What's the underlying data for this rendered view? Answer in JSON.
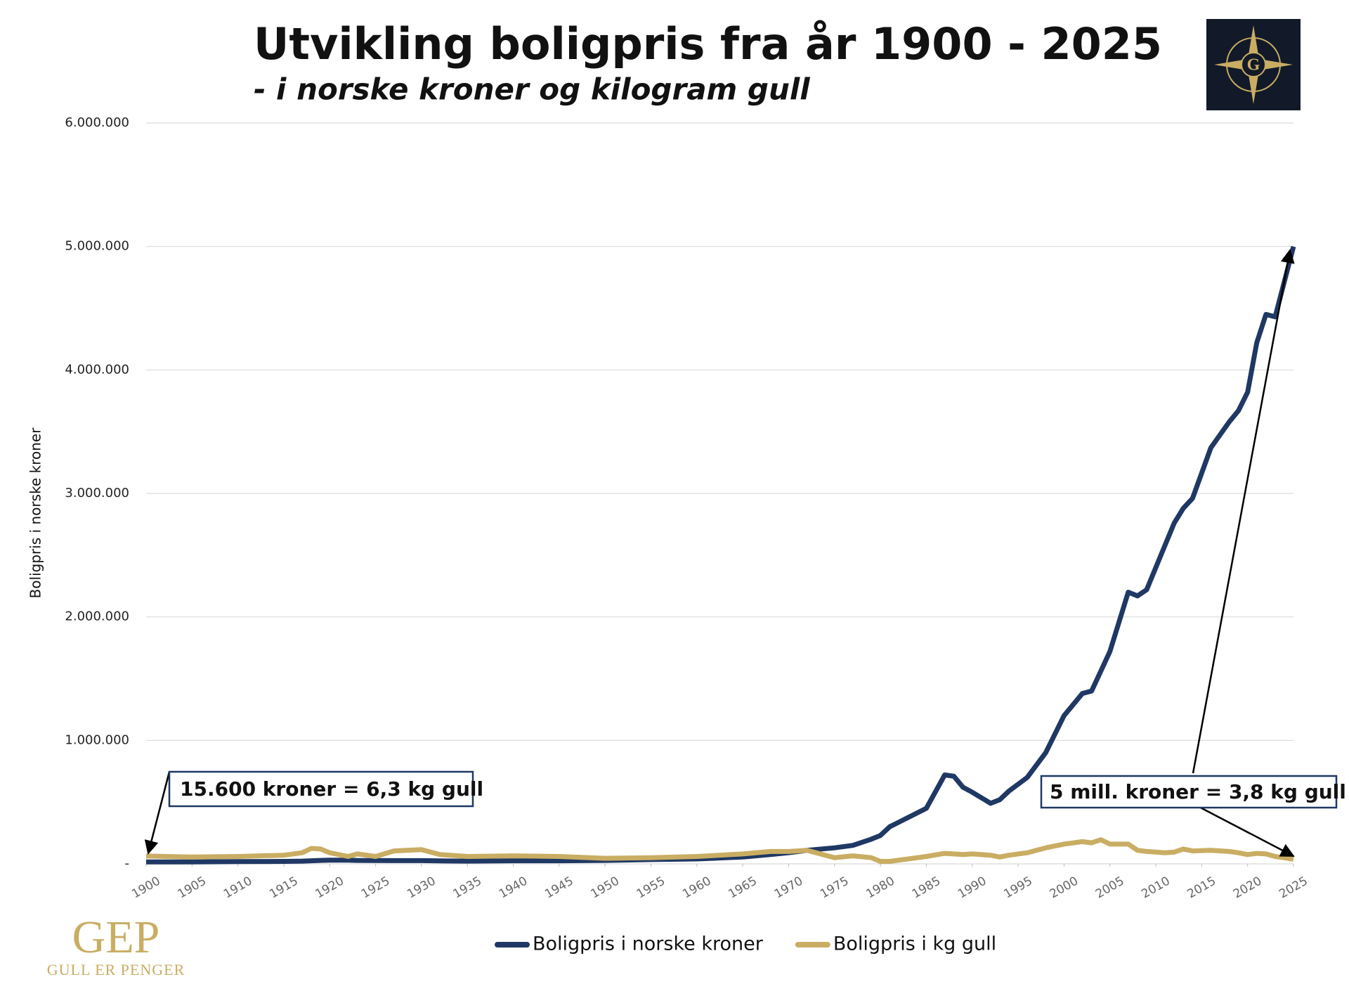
{
  "logo": {
    "letter": "G"
  },
  "brand": {
    "name": "GEP",
    "tagline": "GULL ER PENGER"
  },
  "chart_data": {
    "type": "line",
    "title": "Utvikling boligpris fra år 1900 - 2025",
    "subtitle": "- i norske kroner og kilogram gull",
    "y_label": "Boligpris i norske kroner",
    "x": [
      1900,
      1905,
      1910,
      1915,
      1917,
      1918,
      1919,
      1920,
      1922,
      1923,
      1925,
      1927,
      1930,
      1932,
      1935,
      1940,
      1945,
      1950,
      1955,
      1960,
      1965,
      1968,
      1970,
      1972,
      1975,
      1977,
      1979,
      1980,
      1981,
      1985,
      1987,
      1988,
      1989,
      1990,
      1992,
      1993,
      1994,
      1996,
      1998,
      2000,
      2002,
      2003,
      2004,
      2005,
      2007,
      2008,
      2009,
      2011,
      2012,
      2013,
      2014,
      2016,
      2018,
      2019,
      2020,
      2021,
      2022,
      2023,
      2025
    ],
    "series": [
      {
        "name": "Boligpris i norske kroner",
        "color": "#1f3864",
        "values": [
          15600,
          16000,
          18000,
          20000,
          22000,
          25000,
          28000,
          30000,
          30000,
          28000,
          27000,
          26000,
          26000,
          24000,
          22000,
          25000,
          25000,
          28000,
          35000,
          40000,
          55000,
          75000,
          90000,
          110000,
          130000,
          150000,
          200000,
          230000,
          300000,
          450000,
          720000,
          710000,
          620000,
          580000,
          490000,
          520000,
          590000,
          700000,
          900000,
          1200000,
          1380000,
          1400000,
          1560000,
          1720000,
          2200000,
          2170000,
          2220000,
          2580000,
          2760000,
          2880000,
          2960000,
          3370000,
          3580000,
          3670000,
          3820000,
          4220000,
          4450000,
          4430000,
          5000000
        ]
      },
      {
        "name": "Boligpris i kg gull",
        "color": "#c9ad63",
        "axis": "y2",
        "values": [
          6.3,
          5.5,
          6,
          7,
          9,
          12.5,
          12,
          9,
          6,
          8,
          6,
          10.5,
          11.5,
          7.5,
          6,
          6.5,
          6,
          4.5,
          5,
          6,
          8,
          10,
          10,
          11,
          5,
          6.5,
          5,
          2,
          2,
          6,
          8.5,
          8,
          7.5,
          8,
          7,
          5.5,
          7,
          9,
          13,
          16,
          18,
          17,
          19.5,
          16,
          16,
          11,
          10,
          9,
          9.5,
          12,
          10.5,
          11,
          10,
          9,
          7.5,
          8.5,
          8,
          6,
          3.8
        ]
      }
    ],
    "xlim": [
      1900,
      2025
    ],
    "xticks": [
      1900,
      1905,
      1910,
      1915,
      1920,
      1925,
      1930,
      1935,
      1940,
      1945,
      1950,
      1955,
      1960,
      1965,
      1970,
      1975,
      1980,
      1985,
      1990,
      1995,
      2000,
      2005,
      2010,
      2015,
      2020,
      2025
    ],
    "ylim": [
      0,
      6000000
    ],
    "yticks": [
      {
        "value": 0,
        "label": "-"
      },
      {
        "value": 1000000,
        "label": "1.000.000"
      },
      {
        "value": 2000000,
        "label": "2.000.000"
      },
      {
        "value": 3000000,
        "label": "3.000.000"
      },
      {
        "value": 4000000,
        "label": "4.000.000"
      },
      {
        "value": 5000000,
        "label": "5.000.000"
      },
      {
        "value": 6000000,
        "label": "6.000.000"
      }
    ],
    "y2lim": [
      0,
      600
    ],
    "grid": true,
    "legend": "bottom",
    "annotations": [
      "15.600 kroner = 6,3 kg gull",
      "5 mill. kroner = 3,8 kg gull"
    ]
  }
}
